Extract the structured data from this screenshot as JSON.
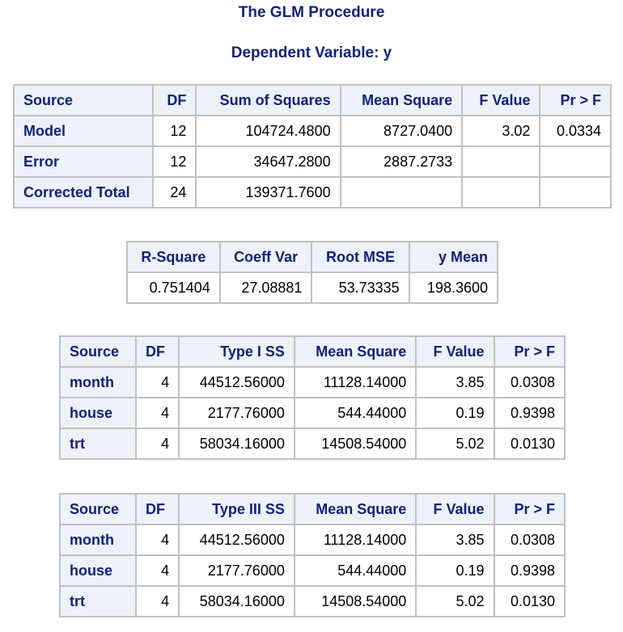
{
  "title": "The GLM Procedure",
  "subtitle": "Dependent Variable: y",
  "anova": {
    "headers": [
      "Source",
      "DF",
      "Sum of Squares",
      "Mean Square",
      "F Value",
      "Pr > F"
    ],
    "rows": [
      [
        "Model",
        "12",
        "104724.4800",
        "8727.0400",
        "3.02",
        "0.0334"
      ],
      [
        "Error",
        "12",
        "34647.2800",
        "2887.2733",
        "",
        ""
      ],
      [
        "Corrected Total",
        "24",
        "139371.7600",
        "",
        "",
        ""
      ]
    ]
  },
  "fit": {
    "headers": [
      "R-Square",
      "Coeff Var",
      "Root MSE",
      "y Mean"
    ],
    "values": [
      "0.751404",
      "27.08881",
      "53.73335",
      "198.3600"
    ]
  },
  "type1": {
    "headers": [
      "Source",
      "DF",
      "Type I SS",
      "Mean Square",
      "F Value",
      "Pr > F"
    ],
    "rows": [
      [
        "month",
        "4",
        "44512.56000",
        "11128.14000",
        "3.85",
        "0.0308"
      ],
      [
        "house",
        "4",
        "2177.76000",
        "544.44000",
        "0.19",
        "0.9398"
      ],
      [
        "trt",
        "4",
        "58034.16000",
        "14508.54000",
        "5.02",
        "0.0130"
      ]
    ]
  },
  "type3": {
    "headers": [
      "Source",
      "DF",
      "Type III SS",
      "Mean Square",
      "F Value",
      "Pr > F"
    ],
    "rows": [
      [
        "month",
        "4",
        "44512.56000",
        "11128.14000",
        "3.85",
        "0.0308"
      ],
      [
        "house",
        "4",
        "2177.76000",
        "544.44000",
        "0.19",
        "0.9398"
      ],
      [
        "trt",
        "4",
        "58034.16000",
        "14508.54000",
        "5.02",
        "0.0130"
      ]
    ]
  }
}
